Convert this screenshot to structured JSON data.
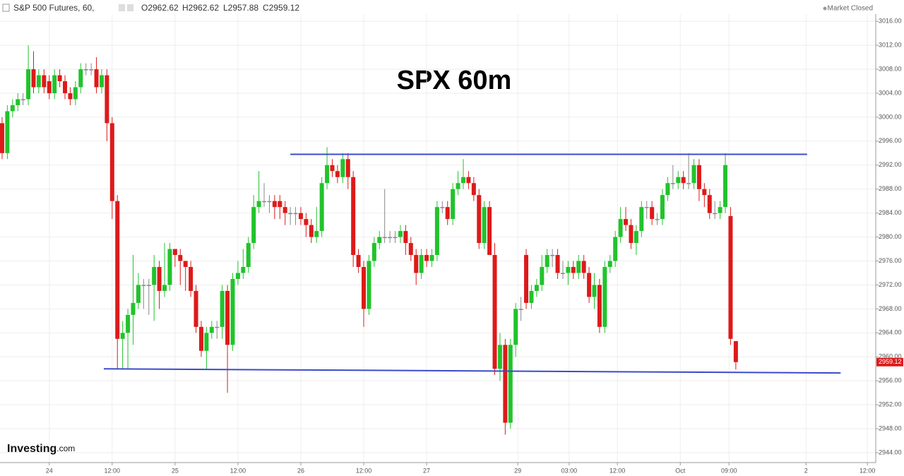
{
  "chart_data": {
    "type": "candlestick",
    "instrument": "S&P 500 Futures, 60,",
    "header_values": [
      "O2962.62",
      "H2962.62",
      "L2957.88",
      "C2959.12"
    ],
    "status": "Market Closed",
    "title": "SPX 60m",
    "logo": "Investing",
    "logo_suffix": ".com",
    "last_price_label": "2959.12",
    "up_color": "#21c32c",
    "down_color": "#dd1a1a",
    "line_color": "#3b4bc8",
    "grid": true,
    "xlim": [
      -0.4,
      166.7
    ],
    "ylim": [
      2942.35,
      3017.2
    ],
    "xticks": [
      {
        "value": 9,
        "label": "24"
      },
      {
        "value": 21,
        "label": "12:00"
      },
      {
        "value": 33,
        "label": "25"
      },
      {
        "value": 45,
        "label": "12:00"
      },
      {
        "value": 57,
        "label": "26"
      },
      {
        "value": 69,
        "label": "12:00"
      },
      {
        "value": 81,
        "label": "27"
      },
      {
        "value": 98.4,
        "label": "29"
      },
      {
        "value": 108.2,
        "label": "03:00"
      },
      {
        "value": 117.4,
        "label": "12:00"
      },
      {
        "value": 129.4,
        "label": "Oct"
      },
      {
        "value": 138.7,
        "label": "09:00"
      },
      {
        "value": 153.4,
        "label": "2"
      },
      {
        "value": 165.1,
        "label": "12:00"
      }
    ],
    "yticks": [
      {
        "value": 2944,
        "label": "2944.00"
      },
      {
        "value": 2948,
        "label": "2948.00"
      },
      {
        "value": 2952,
        "label": "2952.00"
      },
      {
        "value": 2956,
        "label": "2956.00"
      },
      {
        "value": 2960,
        "label": "2960.00"
      },
      {
        "value": 2964,
        "label": "2964.00"
      },
      {
        "value": 2968,
        "label": "2968.00"
      },
      {
        "value": 2972,
        "label": "2972.00"
      },
      {
        "value": 2976,
        "label": "2976.00"
      },
      {
        "value": 2980,
        "label": "2980.00"
      },
      {
        "value": 2984,
        "label": "2984.00"
      },
      {
        "value": 2988,
        "label": "2988.00"
      },
      {
        "value": 2992,
        "label": "2992.00"
      },
      {
        "value": 2996,
        "label": "2996.00"
      },
      {
        "value": 3000,
        "label": "3000.00"
      },
      {
        "value": 3004,
        "label": "3004.00"
      },
      {
        "value": 3008,
        "label": "3008.00"
      },
      {
        "value": 3012,
        "label": "3012.00"
      },
      {
        "value": 3016,
        "label": "3016.00"
      }
    ],
    "trend_lines": [
      {
        "x": [
          55,
          153.6
        ],
        "y": [
          2993.8,
          2993.8
        ]
      },
      {
        "x": [
          19.4,
          160
        ],
        "y": [
          2958.0,
          2957.3
        ]
      }
    ],
    "open": [
      2999,
      2994,
      3001,
      3002,
      3003,
      3003,
      3008,
      3005,
      3007,
      3006,
      3004,
      3007,
      3006,
      3004,
      3003,
      3005,
      3008,
      3008,
      3008,
      3005,
      3007,
      2999,
      2986,
      2963,
      2964,
      2967,
      2969,
      2972,
      2972,
      2972,
      2975,
      2971,
      2972,
      2978,
      2977,
      2976,
      2975,
      2971,
      2965,
      2961,
      2964,
      2965,
      2965,
      2971,
      2962,
      2973,
      2974,
      2975,
      2979,
      2985,
      2986,
      2986,
      2986,
      2986,
      2985,
      2984,
      2984,
      2984,
      2983,
      2982,
      2980,
      2981,
      2989,
      2992,
      2991,
      2990,
      2993,
      2990,
      2977,
      2975,
      2968,
      2976,
      2979,
      2980,
      2980,
      2980,
      2980,
      2981,
      2979,
      2977,
      2974,
      2977,
      2976,
      2977,
      2985,
      2985,
      2983,
      2988,
      2989,
      2990,
      2989,
      2987,
      2979,
      2985,
      2977,
      2958,
      2962,
      2949,
      2962,
      2968,
      2977,
      2969,
      2971,
      2972,
      2975,
      2977,
      2977,
      2974,
      2974,
      2975,
      2974,
      2976,
      2974,
      2970,
      2972,
      2965,
      2975,
      2976,
      2980,
      2983,
      2982,
      2979,
      2981,
      2985,
      2985,
      2983,
      2983,
      2987,
      2989,
      2989,
      2990,
      2989,
      2989,
      2992,
      2988,
      2987,
      2984,
      2984,
      2985,
      2983.5,
      2962.62
    ],
    "high": [
      3000,
      3002,
      3003,
      3004,
      3004,
      3012,
      3011,
      3008,
      3008,
      3007,
      3008,
      3008,
      3007,
      3005,
      3006,
      3009,
      3009,
      3009,
      3010,
      3008,
      3008,
      3000,
      2987,
      2966,
      2968,
      2977,
      2974,
      2973,
      2973,
      2977,
      2976,
      2979,
      2979,
      2978,
      2978,
      2976,
      2976,
      2972,
      2966,
      2965,
      2966,
      2966,
      2972,
      2972,
      2974,
      2976,
      2978,
      2980,
      2987,
      2991,
      2989,
      2987,
      2987,
      2987,
      2986,
      2985,
      2985,
      2985,
      2984,
      2983,
      2985,
      2990,
      2995,
      2993,
      2992,
      2994,
      2994,
      2991,
      2978,
      2976,
      2977,
      2980,
      2981,
      2988,
      2981,
      2981,
      2982,
      2982,
      2980,
      2978,
      2978,
      2978,
      2978,
      2986,
      2986,
      2986,
      2989,
      2991,
      2993,
      2991,
      2990,
      2988,
      2986,
      2986,
      2979,
      2964,
      2963,
      2963,
      2969,
      2970,
      2978,
      2972,
      2973,
      2977,
      2978,
      2978,
      2978,
      2976,
      2976,
      2976,
      2977,
      2977,
      2975,
      2974,
      2973,
      2976,
      2977,
      2981,
      2985,
      2985,
      2983,
      2982,
      2986,
      2986,
      2986,
      2984,
      2988,
      2990,
      2992,
      2991,
      2991,
      2994,
      2993,
      2993,
      2989,
      2988,
      2986,
      2986,
      2994,
      2985,
      2962.62
    ],
    "low": [
      2993,
      2993,
      3000,
      3001,
      3002,
      3002,
      3004,
      3004,
      3004,
      3003,
      3003,
      3005,
      3003,
      3002,
      3002,
      3004,
      3007,
      3007,
      3004,
      3004,
      2996,
      2983,
      2958,
      2958,
      2958,
      2962,
      2968,
      2968,
      2967,
      2966,
      2968,
      2970,
      2971,
      2975,
      2972,
      2971,
      2970,
      2964,
      2960,
      2958,
      2963,
      2963,
      2963,
      2954,
      2961,
      2972,
      2973,
      2974,
      2978,
      2984,
      2985,
      2984,
      2983,
      2983,
      2982,
      2982,
      2982,
      2982,
      2980,
      2979,
      2979,
      2980,
      2988,
      2990,
      2989,
      2989,
      2988,
      2975,
      2974,
      2965,
      2967,
      2975,
      2978,
      2979,
      2979,
      2979,
      2979,
      2977,
      2976,
      2972,
      2973,
      2975,
      2975,
      2976,
      2984,
      2982,
      2982,
      2987,
      2988,
      2988,
      2986,
      2978,
      2978,
      2977,
      2957,
      2956,
      2947,
      2948,
      2960,
      2966,
      2968,
      2968,
      2970,
      2971,
      2974,
      2975,
      2973,
      2973,
      2972,
      2973,
      2973,
      2973,
      2969,
      2968,
      2964,
      2964,
      2974,
      2975,
      2979,
      2981,
      2978,
      2977,
      2980,
      2983,
      2982,
      2982,
      2982,
      2986,
      2988,
      2988,
      2988,
      2988,
      2988,
      2986,
      2985,
      2983,
      2983,
      2983,
      2984,
      2962,
      2957.88
    ],
    "close": [
      2994,
      3001,
      3002,
      3003,
      3003,
      3008,
      3005,
      3007,
      3005,
      3004,
      3007,
      3006,
      3004,
      3003,
      3005,
      3008,
      3008,
      3008,
      3005,
      3007,
      2999,
      2986,
      2963,
      2964,
      2967,
      2969,
      2972,
      2972,
      2972,
      2975,
      2971,
      2972,
      2978,
      2977,
      2976,
      2975,
      2971,
      2965,
      2961,
      2964,
      2965,
      2965,
      2971,
      2962,
      2973,
      2974,
      2975,
      2979,
      2985,
      2986,
      2986,
      2986,
      2985,
      2985,
      2984,
      2984,
      2984,
      2983,
      2982,
      2980,
      2981,
      2989,
      2992,
      2991,
      2990,
      2993,
      2990,
      2977,
      2975,
      2968,
      2976,
      2979,
      2980,
      2980,
      2980,
      2980,
      2981,
      2979,
      2977,
      2974,
      2977,
      2976,
      2977,
      2985,
      2985,
      2983,
      2988,
      2989,
      2990,
      2989,
      2987,
      2979,
      2985,
      2977,
      2958,
      2962,
      2949,
      2962,
      2968,
      2968,
      2969,
      2971,
      2972,
      2975,
      2977,
      2977,
      2974,
      2974,
      2975,
      2974,
      2976,
      2974,
      2970,
      2972,
      2965,
      2975,
      2976,
      2980,
      2983,
      2982,
      2979,
      2981,
      2985,
      2985,
      2983,
      2983,
      2987,
      2989,
      2989,
      2990,
      2989,
      2989,
      2992,
      2988,
      2987,
      2984,
      2984,
      2985,
      2992,
      2963,
      2959.12
    ]
  }
}
